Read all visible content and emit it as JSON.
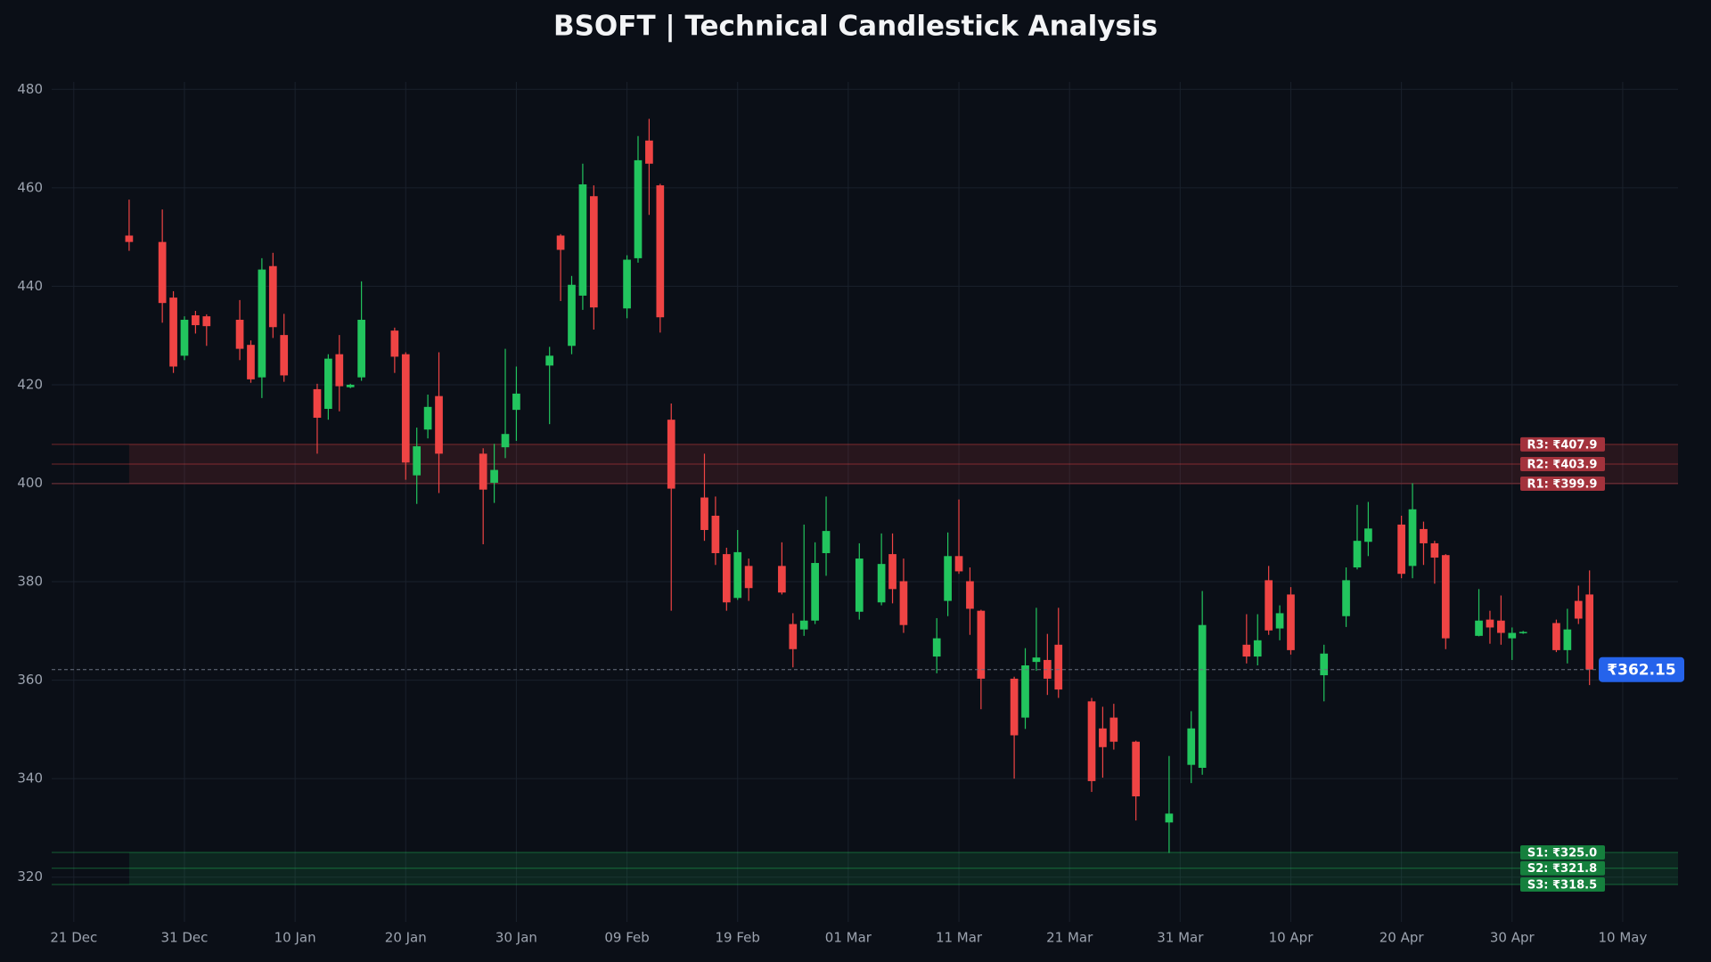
{
  "chart_data": {
    "type": "candlestick",
    "title": "BSOFT | Technical Candlestick Analysis",
    "up_color": "#22c55e",
    "down_color": "#ef4444",
    "grid": true,
    "x": [
      "12-26",
      "12-29",
      "12-30",
      "12-31",
      "01-01",
      "01-02",
      "01-05",
      "01-06",
      "01-07",
      "01-08",
      "01-09",
      "01-12",
      "01-13",
      "01-14",
      "01-15",
      "01-16",
      "01-19",
      "01-20",
      "01-21",
      "01-22",
      "01-23",
      "01-27",
      "01-28",
      "01-29",
      "01-30",
      "02-02",
      "02-03",
      "02-04",
      "02-05",
      "02-06",
      "02-09",
      "02-10",
      "02-11",
      "02-12",
      "02-13",
      "02-16",
      "02-17",
      "02-18",
      "02-19",
      "02-20",
      "02-23",
      "02-24",
      "02-25",
      "02-26",
      "02-27",
      "03-02",
      "03-04",
      "03-05",
      "03-06",
      "03-09",
      "03-10",
      "03-11",
      "03-12",
      "03-13",
      "03-16",
      "03-17",
      "03-18",
      "03-19",
      "03-20",
      "03-23",
      "03-24",
      "03-25",
      "03-27",
      "03-30",
      "04-01",
      "04-02",
      "04-06",
      "04-07",
      "04-08",
      "04-09",
      "04-10",
      "04-13",
      "04-15",
      "04-16",
      "04-17",
      "04-20",
      "04-21",
      "04-22",
      "04-23",
      "04-24",
      "04-27",
      "04-28",
      "04-29",
      "04-30",
      "05-01",
      "05-04",
      "05-05",
      "05-06",
      "05-07"
    ],
    "open": [
      450.3,
      449.0,
      437.7,
      425.9,
      434.1,
      433.9,
      433.2,
      428.1,
      421.5,
      444.1,
      430.1,
      419.1,
      415.1,
      426.2,
      419.5,
      421.5,
      431.0,
      426.2,
      401.6,
      410.9,
      417.7,
      406.0,
      400.1,
      407.3,
      414.9,
      423.9,
      450.3,
      427.9,
      438.1,
      458.3,
      435.5,
      445.7,
      469.6,
      460.5,
      412.9,
      397.1,
      393.4,
      385.6,
      376.7,
      383.2,
      383.2,
      371.4,
      370.3,
      372.1,
      385.8,
      373.9,
      375.8,
      385.6,
      380.1,
      364.8,
      376.1,
      385.2,
      380.1,
      374.1,
      360.3,
      352.4,
      363.7,
      364.1,
      367.2,
      355.7,
      350.2,
      352.4,
      347.5,
      331.1,
      342.8,
      342.2,
      367.2,
      364.8,
      380.3,
      370.5,
      377.4,
      361.0,
      373.0,
      382.9,
      388.1,
      391.6,
      383.2,
      390.7,
      387.8,
      385.4,
      369.0,
      372.3,
      372.1,
      368.5,
      369.6,
      371.6,
      366.1,
      376.1,
      377.4
    ],
    "high": [
      457.6,
      455.6,
      439.0,
      433.9,
      435.0,
      434.3,
      437.2,
      429.0,
      445.7,
      446.8,
      434.4,
      420.2,
      426.2,
      430.1,
      420.2,
      441.0,
      431.6,
      426.6,
      411.3,
      418.0,
      426.6,
      407.1,
      408.0,
      427.3,
      423.7,
      427.7,
      450.6,
      442.1,
      464.9,
      460.5,
      446.3,
      470.5,
      474.0,
      460.8,
      416.2,
      406.0,
      397.3,
      386.9,
      390.5,
      384.7,
      388.0,
      373.6,
      391.6,
      388.0,
      397.3,
      387.8,
      389.8,
      389.8,
      384.7,
      372.6,
      390.0,
      396.7,
      382.9,
      374.3,
      360.7,
      366.5,
      374.7,
      369.4,
      374.7,
      356.4,
      354.6,
      355.2,
      347.7,
      344.6,
      353.7,
      378.1,
      373.4,
      373.4,
      383.2,
      375.2,
      378.9,
      367.2,
      382.9,
      395.6,
      396.2,
      393.4,
      400.0,
      392.2,
      388.3,
      385.6,
      378.5,
      374.1,
      377.2,
      370.7,
      370.0,
      372.3,
      374.5,
      379.2,
      382.3
    ],
    "low": [
      447.2,
      432.6,
      422.4,
      425.0,
      430.4,
      427.9,
      425.0,
      420.4,
      417.3,
      429.5,
      420.6,
      406.0,
      412.9,
      414.6,
      419.3,
      420.8,
      422.4,
      400.7,
      395.8,
      409.1,
      398.0,
      387.6,
      396.0,
      405.1,
      408.6,
      412.0,
      437.0,
      426.2,
      435.2,
      431.2,
      433.5,
      444.8,
      454.5,
      430.6,
      374.1,
      388.3,
      383.4,
      374.1,
      376.3,
      376.1,
      377.4,
      362.6,
      369.0,
      371.4,
      381.2,
      372.3,
      375.2,
      375.6,
      369.6,
      361.4,
      373.0,
      381.6,
      369.2,
      354.1,
      340.0,
      350.1,
      361.9,
      357.0,
      356.4,
      337.3,
      340.2,
      345.9,
      331.5,
      324.9,
      339.1,
      340.8,
      363.4,
      363.0,
      369.2,
      368.1,
      365.2,
      355.7,
      370.8,
      382.5,
      385.2,
      380.7,
      380.7,
      383.4,
      379.6,
      366.3,
      368.9,
      367.4,
      367.2,
      364.1,
      369.4,
      365.7,
      363.4,
      371.4,
      359.0
    ],
    "close": [
      449.0,
      436.6,
      423.7,
      433.2,
      432.1,
      431.9,
      427.3,
      421.1,
      443.4,
      431.7,
      421.9,
      413.3,
      425.3,
      419.7,
      420.0,
      433.2,
      425.7,
      404.2,
      407.5,
      415.5,
      406.0,
      398.7,
      402.7,
      410.0,
      418.2,
      425.9,
      447.4,
      440.3,
      460.7,
      435.7,
      445.4,
      465.6,
      464.9,
      433.7,
      398.9,
      390.5,
      385.8,
      375.8,
      386.0,
      378.7,
      377.8,
      366.3,
      372.1,
      383.8,
      390.3,
      384.7,
      383.6,
      378.5,
      371.2,
      368.5,
      385.2,
      382.1,
      374.5,
      360.3,
      348.8,
      363.0,
      364.6,
      360.3,
      358.1,
      339.5,
      346.4,
      347.5,
      336.4,
      332.9,
      350.2,
      371.2,
      364.8,
      368.1,
      370.1,
      373.6,
      366.1,
      365.4,
      380.3,
      388.3,
      390.8,
      381.6,
      394.7,
      387.8,
      384.9,
      368.5,
      372.1,
      370.7,
      369.6,
      369.6,
      369.8,
      366.1,
      370.3,
      372.5,
      362.15
    ],
    "xlim": [
      "12-19",
      "05-15"
    ],
    "xticks": [
      {
        "value": "12-21",
        "label": "21 Dec"
      },
      {
        "value": "12-31",
        "label": "31 Dec"
      },
      {
        "value": "01-10",
        "label": "10 Jan"
      },
      {
        "value": "01-20",
        "label": "20 Jan"
      },
      {
        "value": "01-30",
        "label": "30 Jan"
      },
      {
        "value": "02-09",
        "label": "09 Feb"
      },
      {
        "value": "02-19",
        "label": "19 Feb"
      },
      {
        "value": "03-01",
        "label": "01 Mar"
      },
      {
        "value": "03-11",
        "label": "11 Mar"
      },
      {
        "value": "03-21",
        "label": "21 Mar"
      },
      {
        "value": "03-31",
        "label": "31 Mar"
      },
      {
        "value": "04-10",
        "label": "10 Apr"
      },
      {
        "value": "04-20",
        "label": "20 Apr"
      },
      {
        "value": "04-30",
        "label": "30 Apr"
      },
      {
        "value": "05-10",
        "label": "10 May"
      }
    ],
    "ylim": [
      310.9,
      481.5
    ],
    "yticks": [
      320,
      340,
      360,
      380,
      400,
      420,
      440,
      460,
      480
    ],
    "resistance": [
      {
        "value": 407.9,
        "label": "R3: ₹407.9"
      },
      {
        "value": 403.9,
        "label": "R2: ₹403.9"
      },
      {
        "value": 399.9,
        "label": "R1: ₹399.9"
      }
    ],
    "support": [
      {
        "value": 325.0,
        "label": "S1: ₹325.0"
      },
      {
        "value": 321.8,
        "label": "S2: ₹321.8"
      },
      {
        "value": 318.5,
        "label": "S3: ₹318.5"
      }
    ],
    "last_price": {
      "value": 362.15,
      "label": "₹362.15"
    }
  }
}
